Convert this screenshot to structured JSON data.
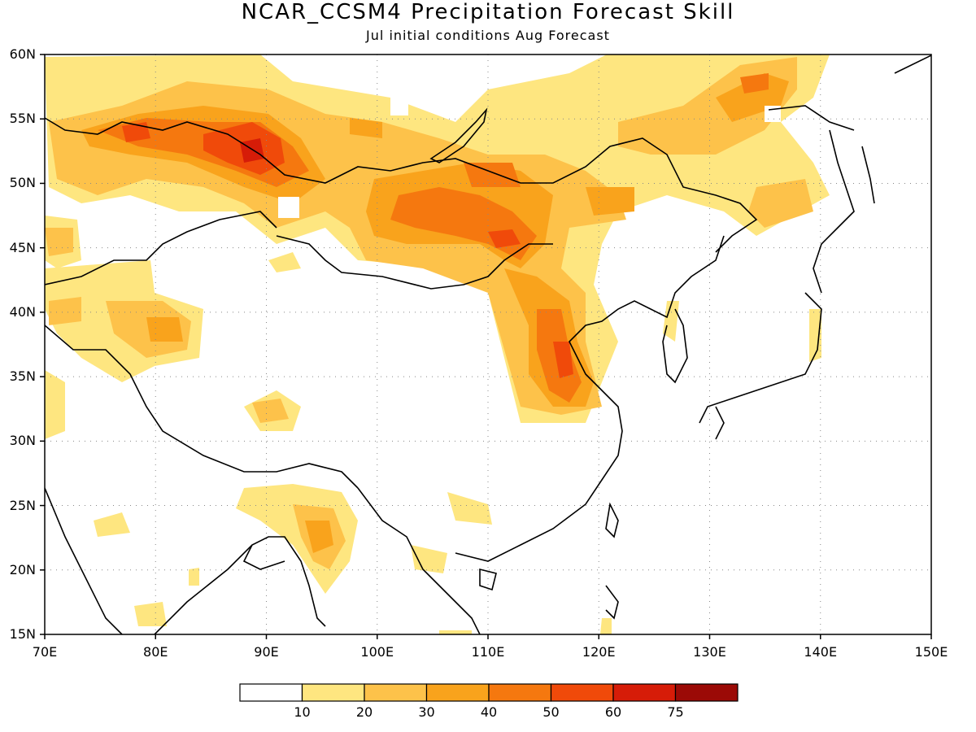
{
  "title": "NCAR_CCSM4 Precipitation Forecast Skill",
  "subtitle": "Jul initial conditions  Aug Forecast",
  "map": {
    "lon_range": [
      70,
      150
    ],
    "lat_range": [
      15,
      60
    ],
    "x_ticks": [
      {
        "value": 70,
        "label": "70E"
      },
      {
        "value": 80,
        "label": "80E"
      },
      {
        "value": 90,
        "label": "90E"
      },
      {
        "value": 100,
        "label": "100E"
      },
      {
        "value": 110,
        "label": "110E"
      },
      {
        "value": 120,
        "label": "120E"
      },
      {
        "value": 130,
        "label": "130E"
      },
      {
        "value": 140,
        "label": "140E"
      },
      {
        "value": 150,
        "label": "150E"
      }
    ],
    "y_ticks": [
      {
        "value": 60,
        "label": "60N"
      },
      {
        "value": 55,
        "label": "55N"
      },
      {
        "value": 50,
        "label": "50N"
      },
      {
        "value": 45,
        "label": "45N"
      },
      {
        "value": 40,
        "label": "40N"
      },
      {
        "value": 35,
        "label": "35N"
      },
      {
        "value": 30,
        "label": "30N"
      },
      {
        "value": 25,
        "label": "25N"
      },
      {
        "value": 20,
        "label": "20N"
      },
      {
        "value": 15,
        "label": "15N"
      }
    ],
    "grid": "dotted"
  },
  "colorbar": {
    "colors": [
      "#ffffff",
      "#fee680",
      "#fdc24a",
      "#f9a31c",
      "#f5780f",
      "#f04a0a",
      "#d61c08",
      "#9b0a06"
    ],
    "labels": [
      "10",
      "20",
      "30",
      "40",
      "50",
      "60",
      "75"
    ]
  }
}
